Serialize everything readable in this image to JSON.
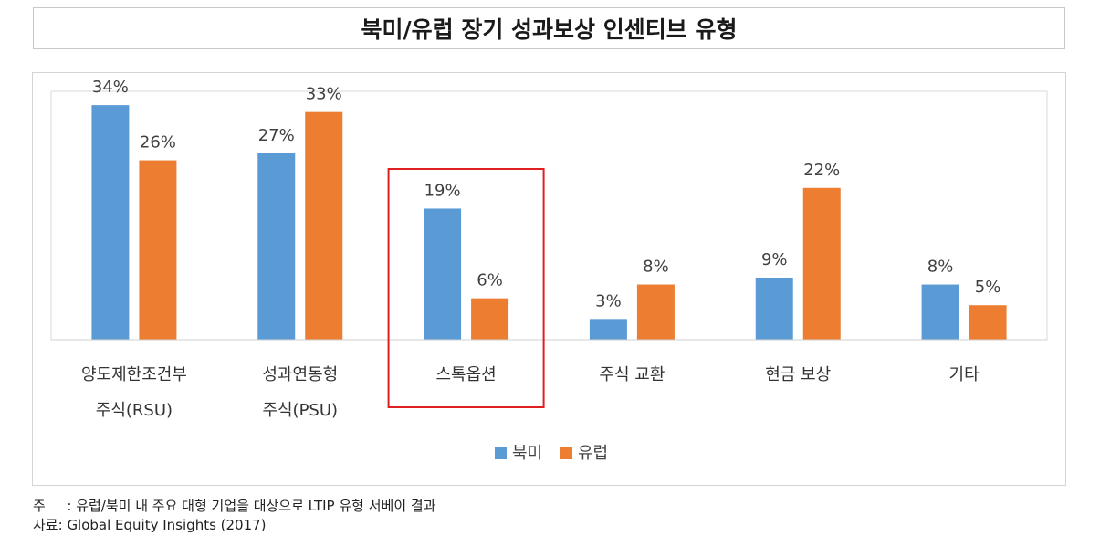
{
  "title": "북미/유럽 장기 성과보상 인센티브 유형",
  "chart_data": {
    "type": "bar",
    "categories": [
      [
        "양도제한조건부",
        "주식(RSU)"
      ],
      [
        "성과연동형",
        "주식(PSU)"
      ],
      [
        "스톡옵션"
      ],
      [
        "주식 교환"
      ],
      [
        "현금 보상"
      ],
      [
        "기타"
      ]
    ],
    "series": [
      {
        "name": "북미",
        "color": "#5b9bd5",
        "values": [
          34,
          27,
          19,
          3,
          9,
          8
        ],
        "labels": [
          "34%",
          "27%",
          "19%",
          "3%",
          "9%",
          "8%"
        ]
      },
      {
        "name": "유럽",
        "color": "#ed7d31",
        "values": [
          26,
          33,
          6,
          8,
          22,
          5
        ],
        "labels": [
          "26%",
          "33%",
          "6%",
          "8%",
          "22%",
          "5%"
        ]
      }
    ],
    "ylim": [
      0,
      36
    ],
    "highlight_category": 2,
    "highlight_color": "#e02020",
    "legend_position": "bottom"
  },
  "footnote": {
    "note_label": "주",
    "note_text": ": 유럽/북미 내 주요 대형 기업을 대상으로 LTIP 유형 서베이 결과",
    "source_label": "자료:",
    "source_text": "Global Equity Insights (2017)"
  }
}
